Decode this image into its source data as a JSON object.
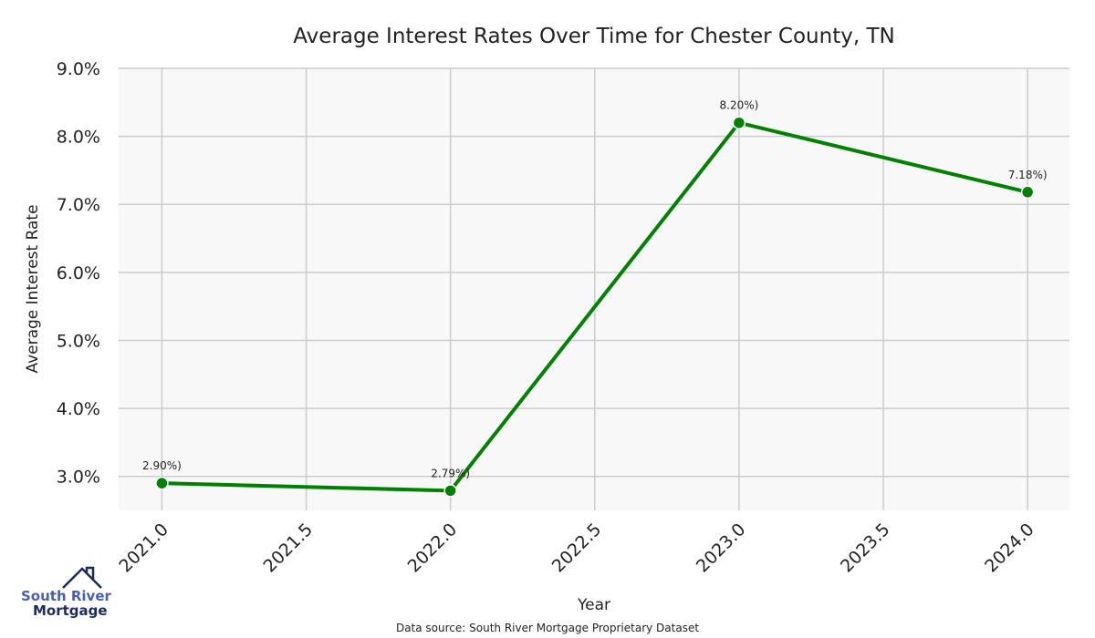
{
  "chart_data": {
    "type": "line",
    "title": "Average Interest Rates Over Time for Chester County, TN",
    "xlabel": "Year",
    "ylabel": "Average Interest Rate",
    "x": [
      2021,
      2022,
      2023,
      2024
    ],
    "values": [
      2.9,
      2.79,
      8.2,
      7.18
    ],
    "data_labels": [
      "2.90%)",
      "2.79%)",
      "8.20%)",
      "7.18%)"
    ],
    "xlim": [
      2020.85,
      2024.145
    ],
    "ylim": [
      2.5,
      9.0
    ],
    "xticks": [
      "2021.0",
      "2021.5",
      "2022.0",
      "2022.5",
      "2023.0",
      "2023.5",
      "2024.0"
    ],
    "yticks": [
      "3.0%",
      "4.0%",
      "5.0%",
      "6.0%",
      "7.0%",
      "8.0%",
      "9.0%"
    ],
    "grid": true,
    "line_color": "#008000",
    "plot_background": "#f8f8f8",
    "grid_color": "#cccccc"
  },
  "footer": {
    "source": "Data source: South River Mortgage Proprietary Dataset"
  },
  "logo": {
    "line1": "South River",
    "line2": "Mortgage"
  }
}
